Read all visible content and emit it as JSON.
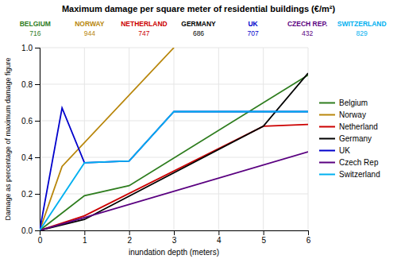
{
  "chart_data": {
    "type": "line",
    "title": "Maximum damage per square meter of residential buildings (€/m²)",
    "xlabel": "inundation depth (meters)",
    "ylabel": "Damage as percentage of maximum damage figure",
    "xlim": [
      0,
      6
    ],
    "ylim": [
      0,
      1
    ],
    "xticks": [
      0,
      1,
      2,
      3,
      4,
      5,
      6
    ],
    "yticks": [
      {
        "value": 0,
        "label": "0.0"
      },
      0.2,
      0.4,
      0.6,
      0.8,
      {
        "value": 1,
        "label": "1.0"
      }
    ],
    "grid": true,
    "legend": "right",
    "series": [
      {
        "name": "Belgium",
        "color": "#2e7d1e",
        "x": [
          0,
          1,
          2,
          6
        ],
        "values": [
          0,
          0.19,
          0.245,
          0.85
        ]
      },
      {
        "name": "Norway",
        "color": "#b8860b",
        "x": [
          0,
          0.5,
          3
        ],
        "values": [
          0,
          0.35,
          1.0
        ]
      },
      {
        "name": "Netherland",
        "color": "#cc0000",
        "x": [
          0,
          1,
          5,
          6
        ],
        "values": [
          0,
          0.08,
          0.57,
          0.58
        ]
      },
      {
        "name": "Germany",
        "color": "#000000",
        "x": [
          0,
          1,
          5,
          6
        ],
        "values": [
          0,
          0.06,
          0.57,
          0.86
        ]
      },
      {
        "name": "UK",
        "color": "#0000cc",
        "x": [
          0,
          0.5,
          1,
          2,
          3,
          6
        ],
        "values": [
          0.0,
          0.67,
          0.37,
          0.38,
          0.65,
          0.65
        ]
      },
      {
        "name": "Czech Rep",
        "color": "#5a0080",
        "x": [
          0,
          1,
          6
        ],
        "values": [
          0,
          0.07,
          0.43
        ]
      },
      {
        "name": "Switzerland",
        "color": "#00b0f0",
        "x": [
          0,
          1,
          2,
          3,
          6
        ],
        "values": [
          0.0,
          0.37,
          0.38,
          0.65,
          0.65
        ]
      }
    ],
    "annotations": [
      {
        "name": "BELGIUM",
        "value": 716,
        "color": "#2e7d1e"
      },
      {
        "name": "NORWAY",
        "value": 944,
        "color": "#b8860b"
      },
      {
        "name": "NETHERLAND",
        "value": 747,
        "color": "#cc0000"
      },
      {
        "name": "GERMANY",
        "value": 686,
        "color": "#000000"
      },
      {
        "name": "UK",
        "value": 707,
        "color": "#0000cc"
      },
      {
        "name": "CZECH REP.",
        "value": 432,
        "color": "#5a0080"
      },
      {
        "name": "SWITZERLAND",
        "value": 829,
        "color": "#00b0f0"
      }
    ]
  }
}
